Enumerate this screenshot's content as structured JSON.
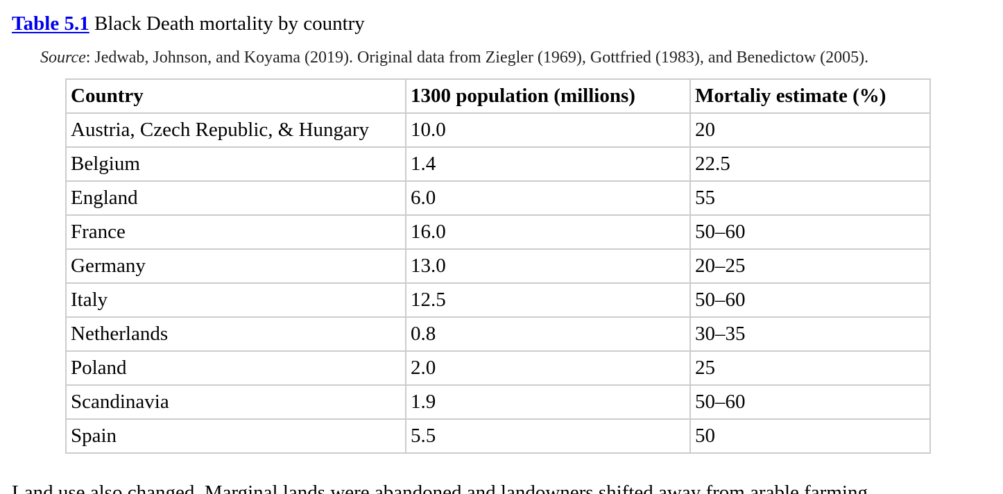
{
  "caption": {
    "label": "Table 5.1",
    "title": "Black Death mortality by country"
  },
  "source": {
    "label": "Source",
    "text": ": Jedwab, Johnson, and Koyama (2019). Original data from Ziegler (1969), Gottfried (1983), and Benedictow (2005)."
  },
  "table": {
    "headers": [
      "Country",
      "1300 population (millions)",
      "Mortaliy estimate (%)"
    ],
    "rows": [
      [
        "Austria, Czech Republic, & Hungary",
        "10.0",
        "20"
      ],
      [
        "Belgium",
        "1.4",
        "22.5"
      ],
      [
        "England",
        "6.0",
        "55"
      ],
      [
        "France",
        "16.0",
        "50–60"
      ],
      [
        "Germany",
        "13.0",
        "20–25"
      ],
      [
        "Italy",
        "12.5",
        "50–60"
      ],
      [
        "Netherlands",
        "0.8",
        "30–35"
      ],
      [
        "Poland",
        "2.0",
        "25"
      ],
      [
        "Scandinavia",
        "1.9",
        "50–60"
      ],
      [
        "Spain",
        "5.5",
        "50"
      ]
    ]
  },
  "next_paragraph": {
    "text": "Land use also changed. Marginal lands were abandoned and landowners shifted away from arable farming"
  },
  "colors": {
    "link": "#0000ee",
    "border": "#cccccc"
  }
}
